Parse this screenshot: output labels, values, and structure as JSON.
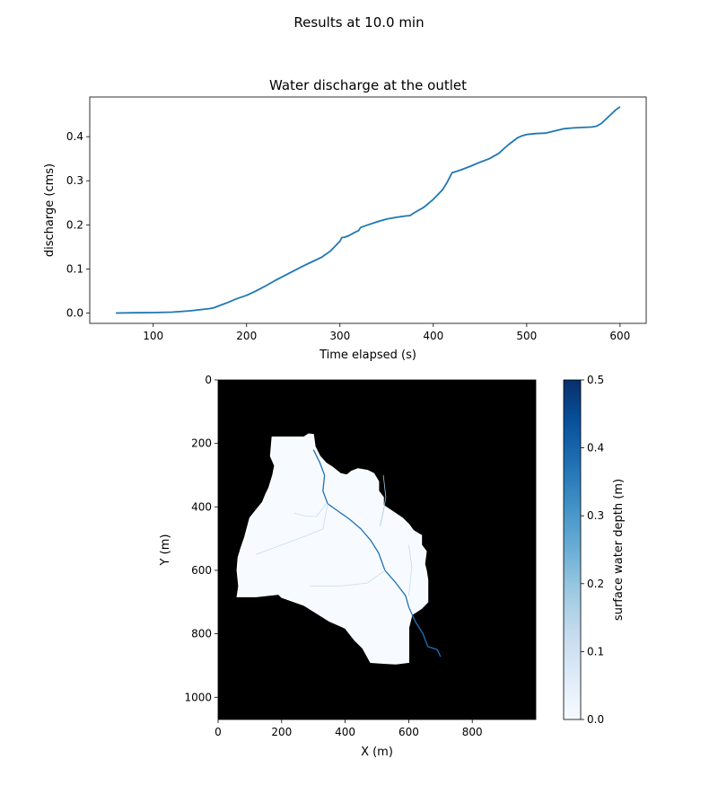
{
  "figure": {
    "suptitle": "Results at 10.0 min"
  },
  "chart_data": [
    {
      "type": "line",
      "title": "Water discharge at the outlet",
      "xlabel": "Time elapsed (s)",
      "ylabel": "discharge (cms)",
      "xlim": [
        32,
        628
      ],
      "ylim": [
        -0.0235,
        0.49
      ],
      "xticks": [
        100,
        200,
        300,
        400,
        500,
        600
      ],
      "yticks": [
        0.0,
        0.1,
        0.2,
        0.3,
        0.4
      ],
      "ytick_labels": [
        "0.0",
        "0.1",
        "0.2",
        "0.3",
        "0.4"
      ],
      "grid": false,
      "series": [
        {
          "color": "#1f77b4",
          "x": [
            60,
            80,
            100,
            120,
            140,
            160,
            165,
            170,
            180,
            190,
            200,
            210,
            220,
            230,
            240,
            250,
            260,
            270,
            280,
            290,
            300,
            302,
            305,
            310,
            315,
            320,
            322,
            330,
            340,
            350,
            360,
            370,
            375,
            380,
            390,
            400,
            410,
            415,
            420,
            430,
            440,
            450,
            460,
            470,
            480,
            490,
            495,
            500,
            505,
            510,
            520,
            530,
            540,
            550,
            560,
            570,
            575,
            580,
            585,
            590,
            595,
            600
          ],
          "y": [
            0.0,
            0.0005,
            0.001,
            0.002,
            0.005,
            0.01,
            0.012,
            0.016,
            0.024,
            0.033,
            0.04,
            0.05,
            0.061,
            0.073,
            0.084,
            0.095,
            0.106,
            0.116,
            0.126,
            0.141,
            0.163,
            0.171,
            0.172,
            0.176,
            0.182,
            0.187,
            0.194,
            0.2,
            0.207,
            0.213,
            0.217,
            0.22,
            0.221,
            0.228,
            0.24,
            0.258,
            0.28,
            0.297,
            0.318,
            0.325,
            0.333,
            0.342,
            0.35,
            0.362,
            0.381,
            0.397,
            0.402,
            0.405,
            0.406,
            0.407,
            0.408,
            0.413,
            0.418,
            0.42,
            0.421,
            0.422,
            0.424,
            0.43,
            0.44,
            0.45,
            0.46,
            0.468
          ]
        }
      ]
    },
    {
      "type": "heatmap",
      "xlabel": "X (m)",
      "ylabel": "Y (m)",
      "xlim": [
        0,
        1000
      ],
      "ylim": [
        1070,
        0
      ],
      "xticks": [
        0,
        200,
        400,
        600,
        800
      ],
      "yticks": [
        0,
        200,
        400,
        600,
        800,
        1000
      ],
      "colormap": "Blues",
      "background_color": "#000000",
      "colorbar": {
        "label": "surface water depth (m)",
        "range": [
          0.0,
          0.5
        ],
        "ticks": [
          0.0,
          0.1,
          0.2,
          0.3,
          0.4,
          0.5
        ],
        "tick_labels": [
          "0.0",
          "0.1",
          "0.2",
          "0.3",
          "0.4",
          "0.5"
        ]
      },
      "watershed_outline": [
        [
          170,
          180
        ],
        [
          270,
          180
        ],
        [
          285,
          170
        ],
        [
          300,
          172
        ],
        [
          305,
          210
        ],
        [
          320,
          240
        ],
        [
          340,
          262
        ],
        [
          360,
          275
        ],
        [
          385,
          295
        ],
        [
          405,
          300
        ],
        [
          420,
          288
        ],
        [
          440,
          280
        ],
        [
          470,
          285
        ],
        [
          490,
          295
        ],
        [
          505,
          320
        ],
        [
          505,
          350
        ],
        [
          520,
          370
        ],
        [
          520,
          395
        ],
        [
          580,
          435
        ],
        [
          600,
          455
        ],
        [
          615,
          475
        ],
        [
          640,
          490
        ],
        [
          640,
          520
        ],
        [
          655,
          540
        ],
        [
          650,
          580
        ],
        [
          655,
          600
        ],
        [
          660,
          630
        ],
        [
          660,
          700
        ],
        [
          640,
          720
        ],
        [
          610,
          740
        ],
        [
          600,
          780
        ],
        [
          600,
          890
        ],
        [
          560,
          895
        ],
        [
          525,
          893
        ],
        [
          480,
          890
        ],
        [
          455,
          845
        ],
        [
          430,
          820
        ],
        [
          400,
          782
        ],
        [
          350,
          760
        ],
        [
          270,
          710
        ],
        [
          200,
          685
        ],
        [
          190,
          675
        ],
        [
          120,
          683
        ],
        [
          60,
          683
        ],
        [
          65,
          650
        ],
        [
          60,
          600
        ],
        [
          63,
          560
        ],
        [
          72,
          530
        ],
        [
          84,
          495
        ],
        [
          100,
          435
        ],
        [
          120,
          410
        ],
        [
          140,
          385
        ],
        [
          150,
          360
        ],
        [
          160,
          340
        ],
        [
          172,
          300
        ],
        [
          178,
          270
        ],
        [
          165,
          240
        ],
        [
          170,
          180
        ]
      ],
      "channels": [
        {
          "depth": 0.35,
          "points": [
            [
              300,
              220
            ],
            [
              320,
              260
            ],
            [
              335,
              300
            ],
            [
              330,
              350
            ],
            [
              345,
              390
            ],
            [
              380,
              415
            ],
            [
              415,
              440
            ],
            [
              450,
              470
            ],
            [
              480,
              505
            ],
            [
              505,
              545
            ],
            [
              525,
              600
            ],
            [
              560,
              640
            ],
            [
              590,
              680
            ],
            [
              600,
              715
            ],
            [
              620,
              760
            ],
            [
              645,
              800
            ],
            [
              660,
              840
            ],
            [
              690,
              850
            ],
            [
              700,
              872
            ]
          ]
        },
        {
          "depth": 0.2,
          "points": [
            [
              520,
              300
            ],
            [
              528,
              370
            ],
            [
              520,
              415
            ],
            [
              510,
              460
            ]
          ]
        },
        {
          "depth": 0.15,
          "points": [
            [
              240,
              420
            ],
            [
              280,
              430
            ],
            [
              310,
              430
            ],
            [
              340,
              390
            ]
          ]
        },
        {
          "depth": 0.1,
          "points": [
            [
              120,
              550
            ],
            [
              200,
              520
            ],
            [
              280,
              490
            ],
            [
              330,
              470
            ],
            [
              345,
              390
            ]
          ]
        },
        {
          "depth": 0.1,
          "points": [
            [
              290,
              650
            ],
            [
              380,
              650
            ],
            [
              470,
              640
            ],
            [
              525,
              600
            ]
          ]
        },
        {
          "depth": 0.1,
          "points": [
            [
              600,
              520
            ],
            [
              610,
              590
            ],
            [
              600,
              680
            ]
          ]
        }
      ]
    }
  ]
}
